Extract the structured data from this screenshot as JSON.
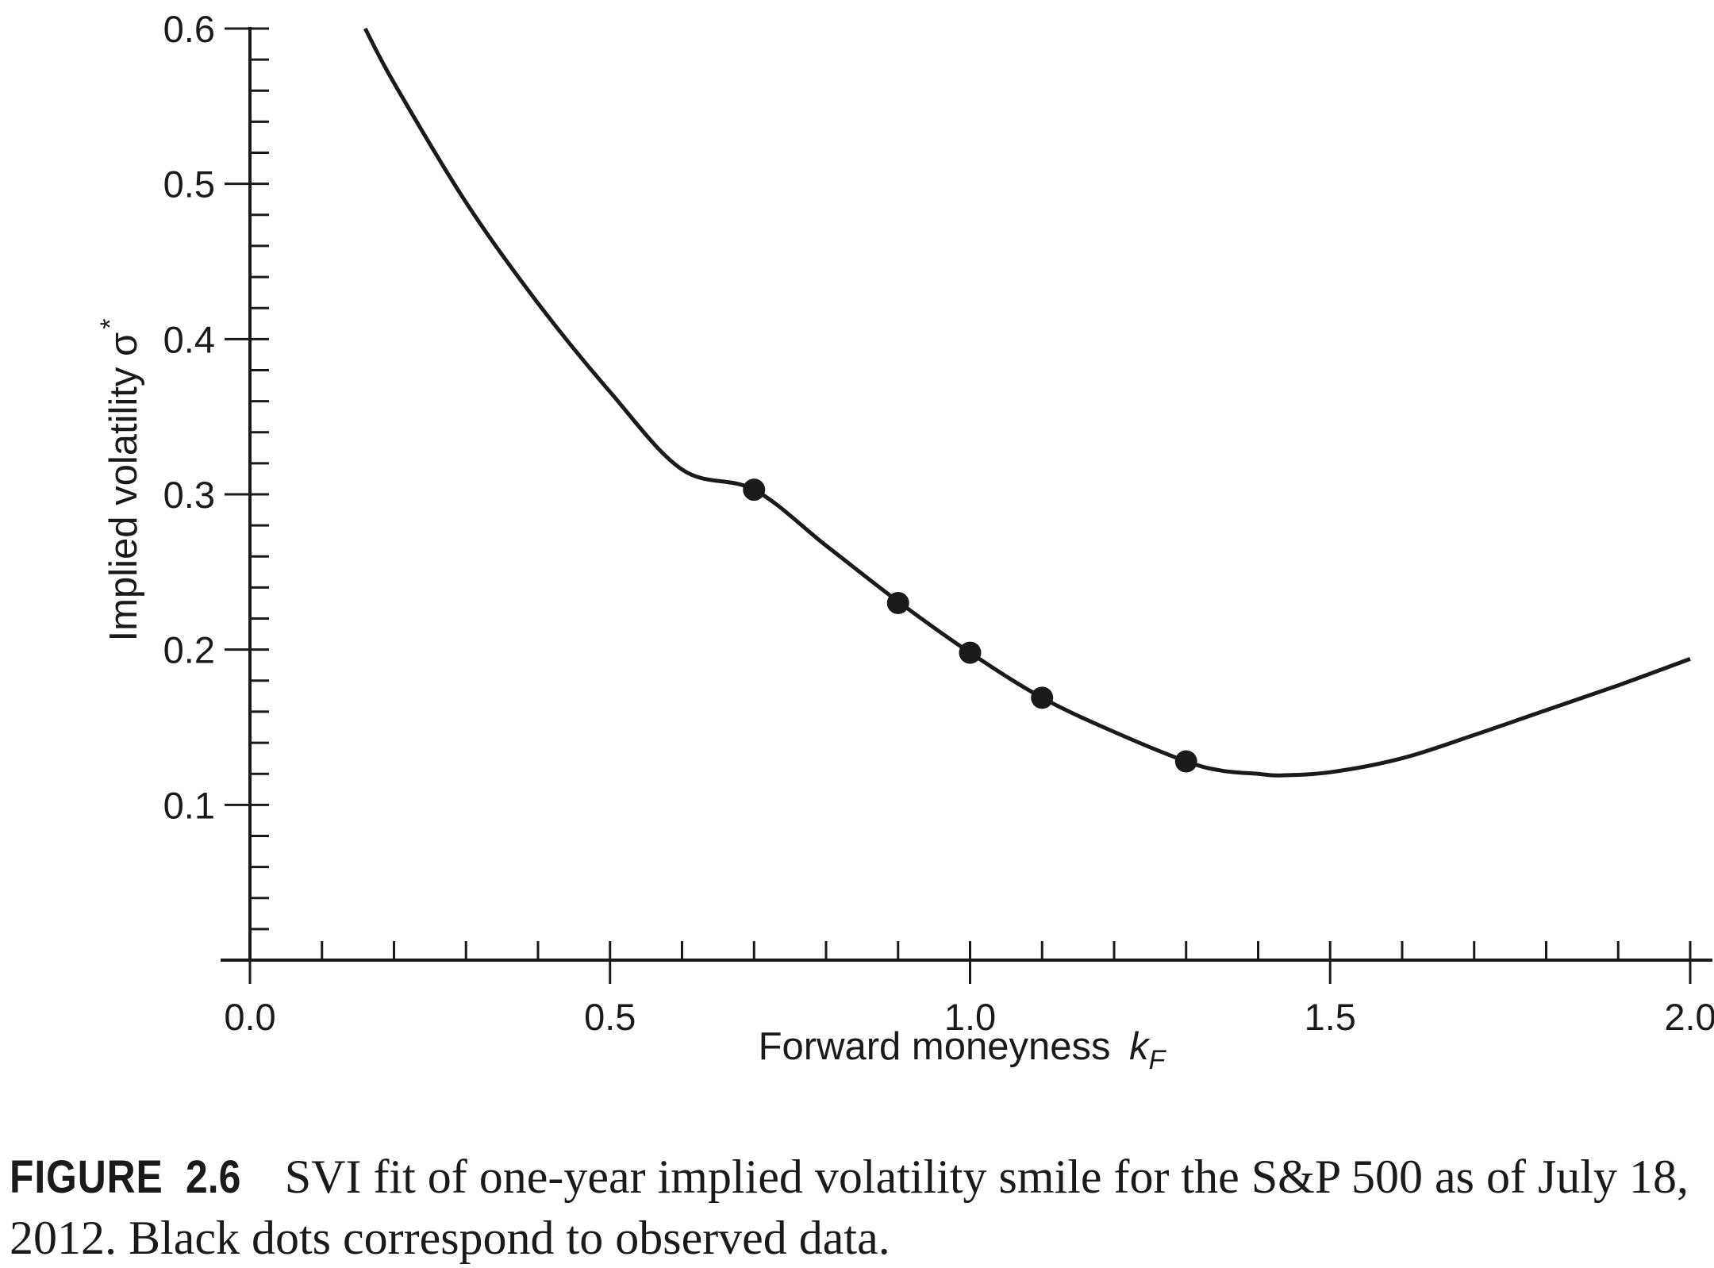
{
  "chart_data": {
    "type": "line",
    "xlabel": "Forward moneyness",
    "xlabel_var": "k",
    "xlabel_sub": "F",
    "ylabel": "Implied volatility σ",
    "ylabel_sup": "*",
    "xlim": [
      0.0,
      2.0
    ],
    "ylim": [
      0.0,
      0.6
    ],
    "x_ticks": [
      "0.0",
      "0.5",
      "1.0",
      "1.5",
      "2.0"
    ],
    "y_ticks": [
      "0.1",
      "0.2",
      "0.3",
      "0.4",
      "0.5",
      "0.6"
    ],
    "grid": false,
    "series": [
      {
        "kind": "fitted-curve",
        "x": [
          0.16,
          0.2,
          0.3,
          0.4,
          0.5,
          0.6,
          0.7,
          0.8,
          0.9,
          1.0,
          1.1,
          1.2,
          1.3,
          1.35,
          1.4,
          1.43,
          1.5,
          1.6,
          1.7,
          1.8,
          1.9,
          2.0
        ],
        "y": [
          0.6,
          0.565,
          0.488,
          0.423,
          0.366,
          0.316,
          0.303,
          0.267,
          0.231,
          0.198,
          0.169,
          0.147,
          0.128,
          0.122,
          0.12,
          0.119,
          0.121,
          0.13,
          0.145,
          0.161,
          0.177,
          0.194
        ]
      },
      {
        "kind": "observed-data",
        "x": [
          0.7,
          0.9,
          1.0,
          1.1,
          1.3
        ],
        "y": [
          0.303,
          0.23,
          0.198,
          0.169,
          0.128
        ]
      }
    ]
  },
  "caption": {
    "figure_label": "FIGURE",
    "figure_number": "2.6",
    "text": "SVI fit of one-year implied volatility smile for the S&P 500 as of July 18, 2012. Black dots correspond to observed data."
  },
  "colors": {
    "ink": "#1a1a1a",
    "background": "#ffffff"
  }
}
